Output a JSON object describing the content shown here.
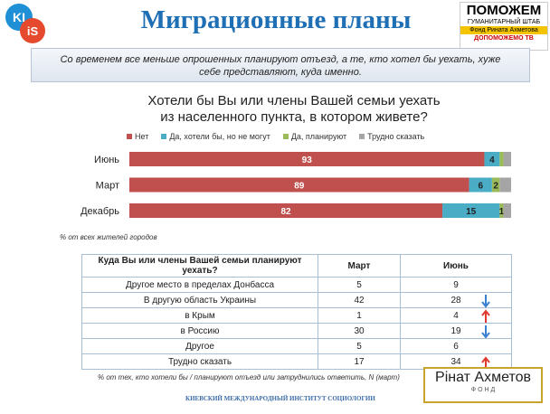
{
  "header": {
    "title": "Миграционные планы",
    "kiis_top": "KI",
    "kiis_bottom": "iS",
    "right_logo": {
      "line1": "ПОМОЖЕМ",
      "line2": "ГУМАНИТАРНЫЙ ШТАБ",
      "line3": "Фонд Рината Ахметова",
      "line4": "ДОПОМОЖЕМО",
      "line5": "ТВ"
    }
  },
  "subtitle": "Со временем все меньше опрошенных планируют отъезд, а те, кто хотел бы уехать, хуже себе представляют, куда именно.",
  "chart_data": {
    "type": "hbar_stacked",
    "title": "Хотели бы Вы или члены Вашей семьи уехать из населенного пункта, в котором живете?",
    "categories": [
      "Июнь",
      "Март",
      "Декабрь"
    ],
    "series": [
      {
        "name": "Нет",
        "color": "#c0504d",
        "values": [
          93,
          89,
          82
        ]
      },
      {
        "name": "Да, хотели бы, но не могут",
        "color": "#4bacc6",
        "values": [
          4,
          6,
          15
        ]
      },
      {
        "name": "Да, планируют",
        "color": "#9bbb59",
        "values": [
          1,
          2,
          1
        ],
        "value_labels": [
          null,
          "2",
          "1"
        ]
      },
      {
        "name": "Трудно сказать",
        "color": "#a5a5a5",
        "values": [
          2,
          3,
          2
        ],
        "value_labels": [
          null,
          null,
          null
        ]
      }
    ],
    "xlim": [
      0,
      100
    ],
    "legend": "top"
  },
  "chart_note": "% от всех жителей городов",
  "table": {
    "header": [
      "Куда Вы или члены Вашей семьи планируют уехать?",
      "Март",
      "Июнь"
    ],
    "rows": [
      [
        "Другое место в пределах Донбасса",
        "5",
        "9"
      ],
      [
        "В другую область Украины",
        "42",
        "28"
      ],
      [
        "в Крым",
        "1",
        "4"
      ],
      [
        "в Россию",
        "30",
        "19"
      ],
      [
        "Другое",
        "5",
        "6"
      ],
      [
        "Трудно сказать",
        "17",
        "34"
      ]
    ]
  },
  "footnote": "% от тех, кто хотели бы / планируют  отъезд или затруднились  ответить, N (март)",
  "footer": {
    "institute": "КИЕВСКИЙ МЕЖДУНАРОДНЫЙ ИНСТИТУТ СОЦИОЛОГИИ",
    "logo_name": "Рінат Ахметов",
    "logo_sub": "Ф О Н Д"
  }
}
